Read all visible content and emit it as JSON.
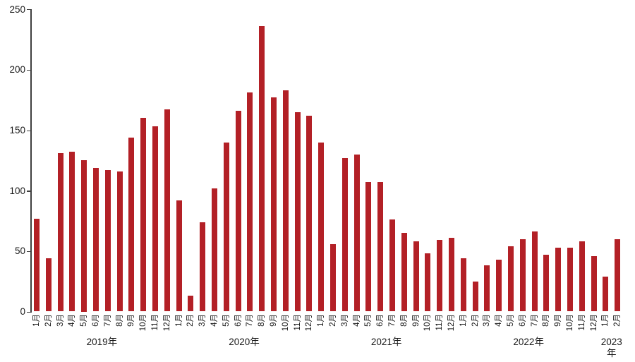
{
  "chart_data": {
    "type": "bar",
    "title": "",
    "xlabel": "",
    "ylabel": "",
    "ylim": [
      0,
      250
    ],
    "yticks": [
      "0",
      "50",
      "100",
      "150",
      "200",
      "250"
    ],
    "ytick_values": [
      0,
      50,
      100,
      150,
      200,
      250
    ],
    "grid": false,
    "legend": false,
    "bar_color": "#B32026",
    "axis_color": "#3f3f3f",
    "groups": [
      {
        "year_label": "2019年",
        "categories": [
          "1月",
          "2月",
          "3月",
          "4月",
          "5月",
          "6月",
          "7月",
          "8月",
          "9月",
          "10月",
          "11月",
          "12月"
        ],
        "values": [
          77,
          44,
          131,
          132,
          125,
          119,
          117,
          116,
          144,
          160,
          153,
          167
        ]
      },
      {
        "year_label": "2020年",
        "categories": [
          "1月",
          "2月",
          "3月",
          "4月",
          "5月",
          "6月",
          "7月",
          "8月",
          "9月",
          "10月",
          "11月",
          "12月"
        ],
        "values": [
          92,
          13,
          74,
          102,
          140,
          166,
          181,
          236,
          177,
          183,
          165,
          162
        ]
      },
      {
        "year_label": "2021年",
        "categories": [
          "1月",
          "2月",
          "3月",
          "4月",
          "5月",
          "6月",
          "7月",
          "8月",
          "9月",
          "10月",
          "11月",
          "12月"
        ],
        "values": [
          140,
          56,
          127,
          130,
          107,
          107,
          76,
          65,
          58,
          48,
          59,
          61
        ]
      },
      {
        "year_label": "2022年",
        "categories": [
          "1月",
          "2月",
          "3月",
          "4月",
          "5月",
          "6月",
          "7月",
          "8月",
          "9月",
          "10月",
          "11月",
          "12月"
        ],
        "values": [
          44,
          25,
          38,
          43,
          54,
          60,
          66,
          47,
          53,
          53,
          58,
          46
        ]
      },
      {
        "year_label": "2023年",
        "categories": [
          "1月",
          "2月"
        ],
        "values": [
          29,
          60
        ]
      }
    ]
  }
}
